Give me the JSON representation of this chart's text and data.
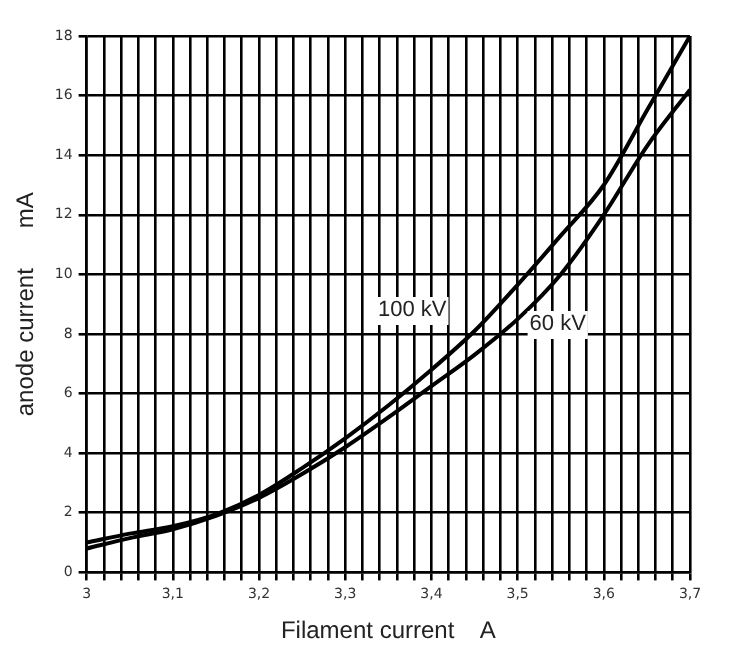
{
  "chart_data": {
    "type": "line",
    "xlabel": "Filament current    A",
    "ylabel": "anode current      mA",
    "x": [
      3,
      3.05,
      3.1,
      3.15,
      3.2,
      3.25,
      3.3,
      3.35,
      3.4,
      3.45,
      3.5,
      3.55,
      3.6,
      3.65,
      3.7
    ],
    "series": [
      {
        "name": "100 kV",
        "color": "#000000",
        "values": [
          1.0,
          1.3,
          1.55,
          1.95,
          2.6,
          3.5,
          4.5,
          5.6,
          6.8,
          8.1,
          9.65,
          11.3,
          13.0,
          15.5,
          18.0
        ]
      },
      {
        "name": "60 kV",
        "color": "#000000",
        "values": [
          0.8,
          1.15,
          1.45,
          1.9,
          2.5,
          3.3,
          4.2,
          5.2,
          6.25,
          7.3,
          8.5,
          10.0,
          12.0,
          14.3,
          16.2
        ]
      }
    ],
    "xlim": [
      3,
      3.7
    ],
    "xticks": [
      {
        "value": 3,
        "label": "3"
      },
      {
        "value": 3.02,
        "label": null
      },
      {
        "value": 3.04,
        "label": null
      },
      {
        "value": 3.06,
        "label": null
      },
      {
        "value": 3.08,
        "label": null
      },
      {
        "value": 3.1,
        "label": "3,1"
      },
      {
        "value": 3.12,
        "label": null
      },
      {
        "value": 3.14,
        "label": null
      },
      {
        "value": 3.16,
        "label": null
      },
      {
        "value": 3.18,
        "label": null
      },
      {
        "value": 3.2,
        "label": "3,2"
      },
      {
        "value": 3.22,
        "label": null
      },
      {
        "value": 3.24,
        "label": null
      },
      {
        "value": 3.26,
        "label": null
      },
      {
        "value": 3.28,
        "label": null
      },
      {
        "value": 3.3,
        "label": "3,3"
      },
      {
        "value": 3.32,
        "label": null
      },
      {
        "value": 3.34,
        "label": null
      },
      {
        "value": 3.36,
        "label": null
      },
      {
        "value": 3.38,
        "label": null
      },
      {
        "value": 3.4,
        "label": "3,4"
      },
      {
        "value": 3.42,
        "label": null
      },
      {
        "value": 3.44,
        "label": null
      },
      {
        "value": 3.46,
        "label": null
      },
      {
        "value": 3.48,
        "label": null
      },
      {
        "value": 3.5,
        "label": "3,5"
      },
      {
        "value": 3.52,
        "label": null
      },
      {
        "value": 3.54,
        "label": null
      },
      {
        "value": 3.56,
        "label": null
      },
      {
        "value": 3.58,
        "label": null
      },
      {
        "value": 3.6,
        "label": "3,6"
      },
      {
        "value": 3.62,
        "label": null
      },
      {
        "value": 3.64,
        "label": null
      },
      {
        "value": 3.66,
        "label": null
      },
      {
        "value": 3.68,
        "label": null
      },
      {
        "value": 3.7,
        "label": "3,7"
      }
    ],
    "ylim": [
      0,
      18
    ],
    "yticks": [
      0,
      2,
      4,
      6,
      8,
      10,
      12,
      14,
      16,
      18
    ],
    "grid": true,
    "legend": false,
    "marker": "none",
    "line_style": "solid"
  }
}
